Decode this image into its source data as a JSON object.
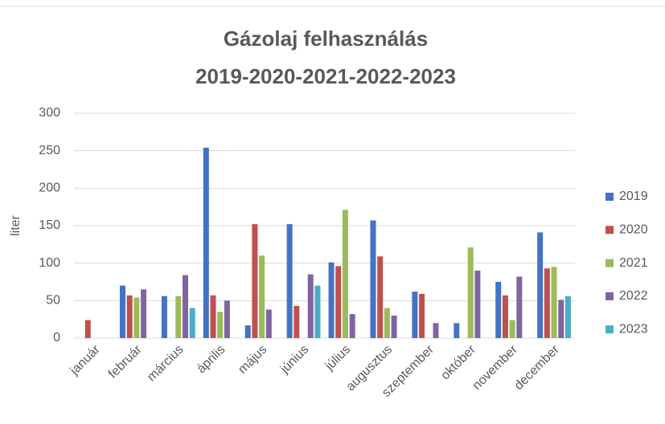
{
  "chart_data": {
    "type": "bar",
    "title": [
      "Gázolaj felhasználás",
      "2019-2020-2021-2022-2023"
    ],
    "y_label": "liter",
    "categories": [
      "január",
      "február",
      "március",
      "április",
      "május",
      "június",
      "július",
      "augusztus",
      "szeptember",
      "október",
      "november",
      "december"
    ],
    "series": [
      {
        "name": "2019",
        "color": "#4472c4",
        "values": [
          null,
          70,
          56,
          254,
          17,
          152,
          101,
          157,
          62,
          20,
          75,
          141
        ]
      },
      {
        "name": "2020",
        "color": "#c0504d",
        "values": [
          24,
          57,
          null,
          57,
          152,
          43,
          96,
          109,
          59,
          null,
          57,
          93
        ]
      },
      {
        "name": "2021",
        "color": "#9bbb59",
        "values": [
          null,
          54,
          56,
          35,
          110,
          null,
          171,
          40,
          null,
          121,
          24,
          95
        ]
      },
      {
        "name": "2022",
        "color": "#8064a2",
        "values": [
          null,
          65,
          84,
          50,
          38,
          85,
          32,
          30,
          20,
          90,
          82,
          51
        ]
      },
      {
        "name": "2023",
        "color": "#4bacc6",
        "values": [
          null,
          null,
          40,
          null,
          null,
          70,
          null,
          null,
          null,
          null,
          null,
          56
        ]
      }
    ],
    "ylim": [
      0,
      300
    ],
    "yticks": [
      0,
      50,
      100,
      150,
      200,
      250,
      300
    ],
    "grid": true,
    "legend": "right"
  }
}
